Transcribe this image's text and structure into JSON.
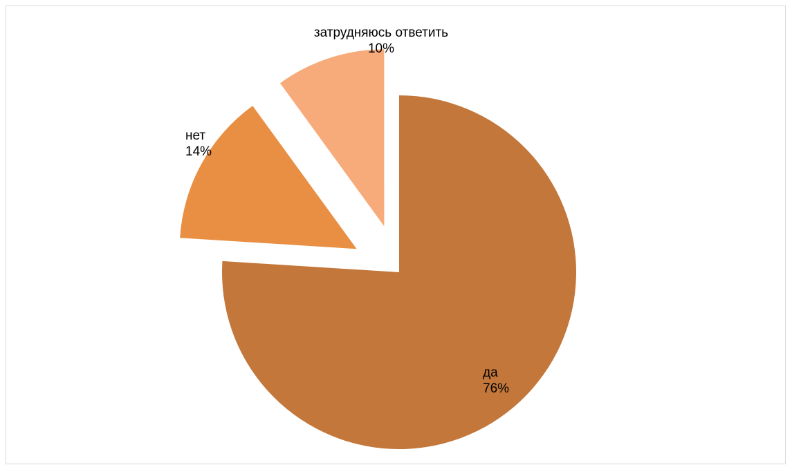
{
  "chart_data": {
    "type": "pie",
    "start_angle_deg": 0,
    "direction": "clockwise",
    "slices": [
      {
        "label": "да",
        "value": 76,
        "percent_label": "76%",
        "color": "#C3773A",
        "exploded": false
      },
      {
        "label": "нет",
        "value": 14,
        "percent_label": "14%",
        "color": "#E98F43",
        "exploded": true
      },
      {
        "label": "затрудняюсь ответить",
        "value": 10,
        "percent_label": "10%",
        "color": "#F7AB7A",
        "exploded": true
      }
    ]
  }
}
